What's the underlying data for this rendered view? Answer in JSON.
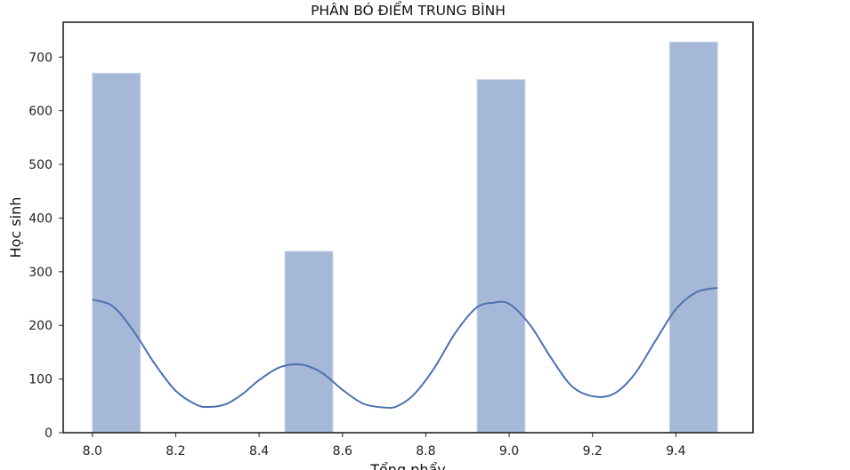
{
  "chart_data": {
    "type": "bar",
    "title": "PHÂN BÓ ĐIỂM TRUNG BÌNH",
    "xlabel": "Tổng phẩy",
    "ylabel": "Học sinh",
    "xlim": [
      7.93,
      9.585
    ],
    "ylim": [
      0,
      765
    ],
    "x_ticks": [
      "8.0",
      "8.2",
      "8.4",
      "8.6",
      "8.8",
      "9.0",
      "9.2",
      "9.4"
    ],
    "x_tick_values": [
      8.0,
      8.2,
      8.4,
      8.6,
      8.8,
      9.0,
      9.2,
      9.4
    ],
    "y_ticks": [
      "0",
      "100",
      "200",
      "300",
      "400",
      "500",
      "600",
      "700"
    ],
    "y_tick_values": [
      0,
      100,
      200,
      300,
      400,
      500,
      600,
      700
    ],
    "bars": [
      {
        "x0": 8.0,
        "x1": 8.115,
        "value": 670
      },
      {
        "x0": 8.462,
        "x1": 8.577,
        "value": 338
      },
      {
        "x0": 8.923,
        "x1": 9.038,
        "value": 658
      },
      {
        "x0": 9.385,
        "x1": 9.5,
        "value": 728
      }
    ],
    "kde": {
      "x": [
        8.0,
        8.05,
        8.1,
        8.15,
        8.2,
        8.25,
        8.28,
        8.32,
        8.36,
        8.4,
        8.45,
        8.5,
        8.55,
        8.6,
        8.65,
        8.7,
        8.73,
        8.77,
        8.82,
        8.87,
        8.92,
        8.96,
        9.0,
        9.05,
        9.1,
        9.15,
        9.2,
        9.25,
        9.3,
        9.35,
        9.4,
        9.45,
        9.5
      ],
      "y": [
        248,
        235,
        188,
        128,
        78,
        52,
        48,
        53,
        72,
        98,
        122,
        127,
        112,
        80,
        54,
        47,
        49,
        70,
        120,
        185,
        232,
        242,
        240,
        201,
        140,
        87,
        68,
        72,
        108,
        170,
        230,
        262,
        270
      ]
    },
    "grid": false,
    "legend": "none",
    "colors": {
      "bar": "#a6b8d8",
      "bar_edge": "#c8d4e8",
      "line": "#4c72b0",
      "axis": "#222222"
    }
  }
}
